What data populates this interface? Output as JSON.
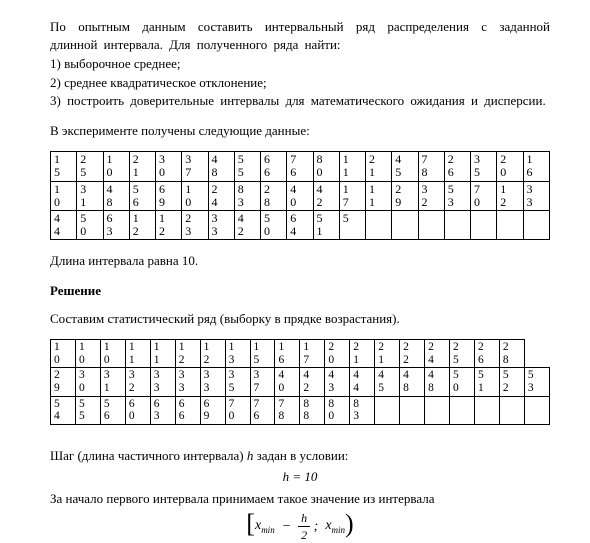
{
  "intro": {
    "p1": "По опытным данным составить интервальный ряд распределения с заданной длинной интервала. Для полученного ряда найти:",
    "i1": "1) выборочное среднее;",
    "i2": "2) среднее квадратическое отклонение;",
    "i3": "3) построить доверительные интервалы для математического ожидания и дисперсии.",
    "p2": "В эксперименте получены следующие данные:"
  },
  "table1": {
    "rows": [
      [
        "1\n5",
        "2\n5",
        "1\n0",
        "2\n1",
        "3\n0",
        "3\n7",
        "4\n8",
        "5\n5",
        "6\n6",
        "7\n6",
        "8\n0",
        "1\n1",
        "2\n1",
        "4\n5",
        "7\n8",
        "2\n6",
        "3\n5",
        "2\n0",
        "1\n6"
      ],
      [
        "1\n0",
        "3\n1",
        "4\n8",
        "5\n6",
        "6\n9",
        "1\n0",
        "2\n4",
        "8\n3",
        "2\n8",
        "4\n0",
        "4\n2",
        "1\n7",
        "1\n1",
        "2\n9",
        "3\n2",
        "5\n3",
        "7\n0",
        "1\n2",
        "3\n3"
      ],
      [
        "4\n4",
        "5\n0",
        "6\n3",
        "1\n2",
        "1\n2",
        "2\n3",
        "3\n3",
        "4\n2",
        "5\n0",
        "6\n4",
        "5\n1",
        "5",
        "",
        "",
        "",
        "",
        "",
        "",
        ""
      ]
    ]
  },
  "mid": {
    "p1": "Длина интервала равна 10.",
    "h1": "Решение",
    "p2": "Составим статистический ряд (выборку в прядке возрастания)."
  },
  "table2": {
    "rows": [
      [
        "1\n0",
        "1\n0",
        "1\n0",
        "1\n1",
        "1\n1",
        "1\n2",
        "1\n2",
        "1\n3",
        "1\n5",
        "1\n6",
        "1\n7",
        "2\n0",
        "2\n1",
        "2\n1",
        "2\n2",
        "2\n4",
        "2\n5",
        "2\n6",
        "2\n8"
      ],
      [
        "2\n9",
        "3\n0",
        "3\n1",
        "3\n2",
        "3\n3",
        "3\n3",
        "3\n3",
        "3\n5",
        "3\n7",
        "4\n0",
        "4\n2",
        "4\n3",
        "4\n4",
        "4\n5",
        "4\n8",
        "4\n8",
        "5\n0",
        "5\n1",
        "5\n2",
        "5\n3"
      ],
      [
        "5\n4",
        "5\n5",
        "5\n6",
        "6\n0",
        "6\n3",
        "6\n6",
        "6\n9",
        "7\n0",
        "7\n6",
        "7\n8",
        "8\n8",
        "8\n0",
        "8\n3",
        "",
        "",
        "",
        "",
        "",
        "",
        ""
      ]
    ]
  },
  "tail": {
    "p1a": "Шаг (длина  частичного интервала) ",
    "p1h": "h",
    "p1b": " задан в условии:",
    "f1": "h = 10",
    "p2": "За начало первого интервала  принимаем такое значение из интервала",
    "xmin": "x",
    "min_sub": "min",
    "h_sym": "h",
    "two": "2",
    "semi": ";"
  }
}
